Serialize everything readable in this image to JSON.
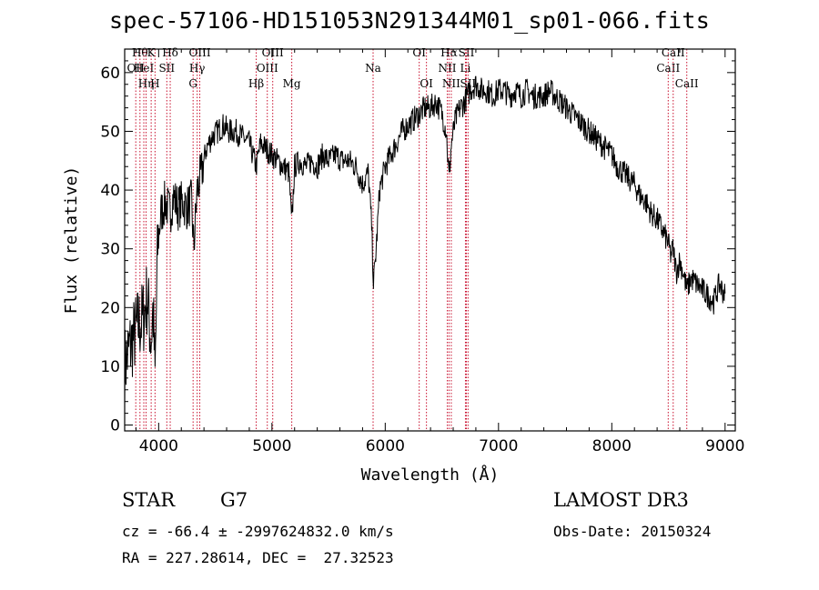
{
  "chart_data": {
    "type": "line",
    "title": "spec-57106-HD151053N291344M01_sp01-066.fits",
    "xlabel": "Wavelength (Å)",
    "ylabel": "Flux (relative)",
    "xlim": [
      3700,
      9090
    ],
    "ylim": [
      -1,
      64
    ],
    "xticks": [
      4000,
      5000,
      6000,
      7000,
      8000,
      9000
    ],
    "yticks": [
      0,
      10,
      20,
      30,
      40,
      50,
      60
    ],
    "grid": false,
    "series": [
      {
        "x": [
          3700,
          3740,
          3780,
          3820,
          3860,
          3900,
          3933,
          3950,
          3968,
          3990,
          4020,
          4060,
          4101,
          4130,
          4170,
          4210,
          4250,
          4290,
          4310,
          4340,
          4380,
          4420,
          4470,
          4520,
          4570,
          4620,
          4680,
          4740,
          4800,
          4861,
          4900,
          4950,
          5000,
          5050,
          5100,
          5150,
          5175,
          5200,
          5250,
          5300,
          5350,
          5400,
          5450,
          5500,
          5560,
          5620,
          5680,
          5740,
          5800,
          5850,
          5880,
          5890,
          5896,
          5905,
          5920,
          5950,
          6000,
          6050,
          6100,
          6150,
          6200,
          6250,
          6300,
          6350,
          6400,
          6450,
          6500,
          6540,
          6563,
          6585,
          6620,
          6660,
          6700,
          6750,
          6800,
          6850,
          6900,
          6950,
          7000,
          7050,
          7100,
          7150,
          7200,
          7250,
          7300,
          7350,
          7400,
          7450,
          7500,
          7550,
          7600,
          7650,
          7700,
          7750,
          7800,
          7850,
          7900,
          7950,
          8000,
          8050,
          8100,
          8150,
          8200,
          8250,
          8300,
          8350,
          8400,
          8450,
          8498,
          8520,
          8542,
          8570,
          8600,
          8630,
          8662,
          8700,
          8750,
          8800,
          8850,
          8900,
          8950,
          9000
        ],
        "y": [
          10,
          13,
          15,
          17,
          18,
          22,
          14,
          20,
          8,
          30,
          36,
          38,
          36,
          39,
          37,
          38,
          37,
          38,
          30,
          40,
          43,
          47,
          49,
          50,
          51,
          50,
          50,
          49,
          48,
          44,
          48,
          47,
          46,
          45,
          44,
          43,
          34,
          44,
          45,
          44,
          45,
          44,
          46,
          45,
          46,
          45,
          45,
          44,
          41,
          43,
          34,
          28,
          24,
          26,
          30,
          40,
          44,
          46,
          48,
          50,
          51,
          52,
          53,
          54,
          54,
          55,
          53,
          50,
          42,
          48,
          52,
          54,
          55,
          57,
          58,
          57,
          57,
          56,
          57,
          57,
          56,
          57,
          56,
          57,
          56,
          56,
          56,
          57,
          56,
          55,
          54,
          53,
          52,
          51,
          50,
          49,
          48,
          47,
          46,
          44,
          43,
          42,
          41,
          39,
          38,
          36,
          35,
          33,
          31,
          29,
          30,
          26,
          28,
          26,
          23,
          25,
          24,
          23,
          22,
          21,
          24,
          22
        ]
      }
    ],
    "lines": [
      {
        "wl": 3798,
        "row": 1,
        "label": "OII"
      },
      {
        "wl": 3835,
        "row": 0,
        "label": "Hθ"
      },
      {
        "wl": 3869,
        "row": 1,
        "label": "HeI"
      },
      {
        "wl": 3889,
        "row": 2,
        "label": "Hη"
      },
      {
        "wl": 3934,
        "row": 0,
        "label": "K"
      },
      {
        "wl": 3968,
        "row": 2,
        "label": "H"
      },
      {
        "wl": 4072,
        "row": 1,
        "label": "SII"
      },
      {
        "wl": 4102,
        "row": 0,
        "label": "Hδ"
      },
      {
        "wl": 4304,
        "row": 2,
        "label": "G"
      },
      {
        "wl": 4340,
        "row": 1,
        "label": "Hγ"
      },
      {
        "wl": 4363,
        "row": 0,
        "label": "OIII"
      },
      {
        "wl": 4861,
        "row": 2,
        "label": "Hβ"
      },
      {
        "wl": 4959,
        "row": 1,
        "label": "OIII"
      },
      {
        "wl": 5007,
        "row": 0,
        "label": "OIII"
      },
      {
        "wl": 5175,
        "row": 2,
        "label": "Mg"
      },
      {
        "wl": 5893,
        "row": 1,
        "label": "Na"
      },
      {
        "wl": 6300,
        "row": 0,
        "label": "OI"
      },
      {
        "wl": 6364,
        "row": 2,
        "label": "OI"
      },
      {
        "wl": 6548,
        "row": 1,
        "label": "NII"
      },
      {
        "wl": 6563,
        "row": 0,
        "label": "Hα"
      },
      {
        "wl": 6583,
        "row": 2,
        "label": "NII"
      },
      {
        "wl": 6708,
        "row": 1,
        "label": "Li"
      },
      {
        "wl": 6716,
        "row": 0,
        "label": "SII"
      },
      {
        "wl": 6731,
        "row": 2,
        "label": "SII"
      },
      {
        "wl": 8498,
        "row": 1,
        "label": "CaII"
      },
      {
        "wl": 8542,
        "row": 0,
        "label": "CaII"
      },
      {
        "wl": 8662,
        "row": 2,
        "label": "CaII"
      }
    ],
    "line_color": "#c8102e",
    "spectrum_color": "#000000"
  },
  "info": {
    "class": "STAR",
    "subclass": "G7",
    "survey": "LAMOST DR3",
    "cz_text": "cz = -66.4 ± -2997624832.0 km/s",
    "obs_date_text": "Obs-Date: 20150324",
    "radec_text": "RA = 227.28614, DEC =  27.32523"
  }
}
